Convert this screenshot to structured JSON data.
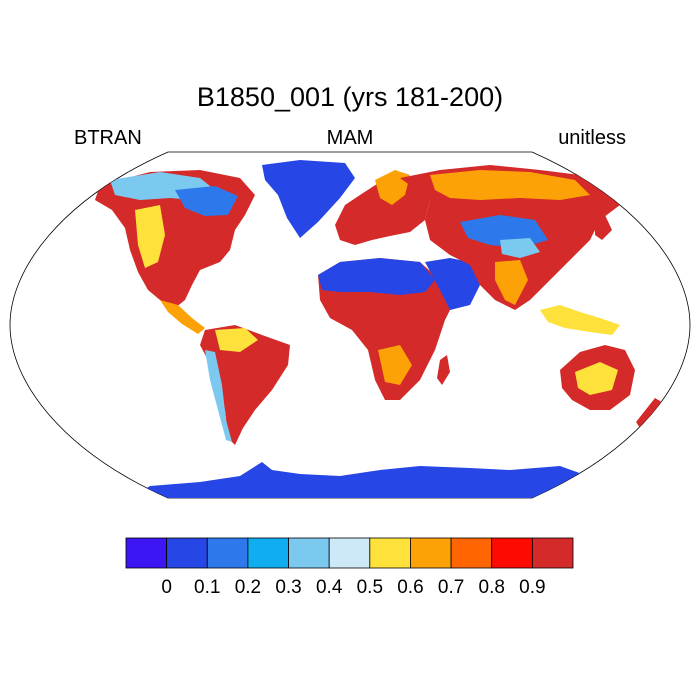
{
  "title": "B1850_001 (yrs 181-200)",
  "left_label": "BTRAN",
  "center_label": "MAM",
  "right_label": "unitless",
  "colorbar": {
    "colors": [
      "#3e16f4",
      "#2646e6",
      "#2d79ec",
      "#10aef0",
      "#7cc9f0",
      "#cde9f8",
      "#fee13a",
      "#fda206",
      "#ff6503",
      "#fd0a03",
      "#d42a2a"
    ],
    "tick_labels": [
      "0",
      "0.1",
      "0.2",
      "0.3",
      "0.4",
      "0.5",
      "0.6",
      "0.7",
      "0.8",
      "0.9"
    ]
  },
  "map_colors": {
    "ice": "#2646e6",
    "wet_high": "#d42a2a",
    "high": "#fd0a03",
    "mid_high": "#ff6503",
    "mid": "#fda206",
    "moderate": "#fee13a",
    "low": "#7cc9f0",
    "very_low": "#2d79ec"
  }
}
